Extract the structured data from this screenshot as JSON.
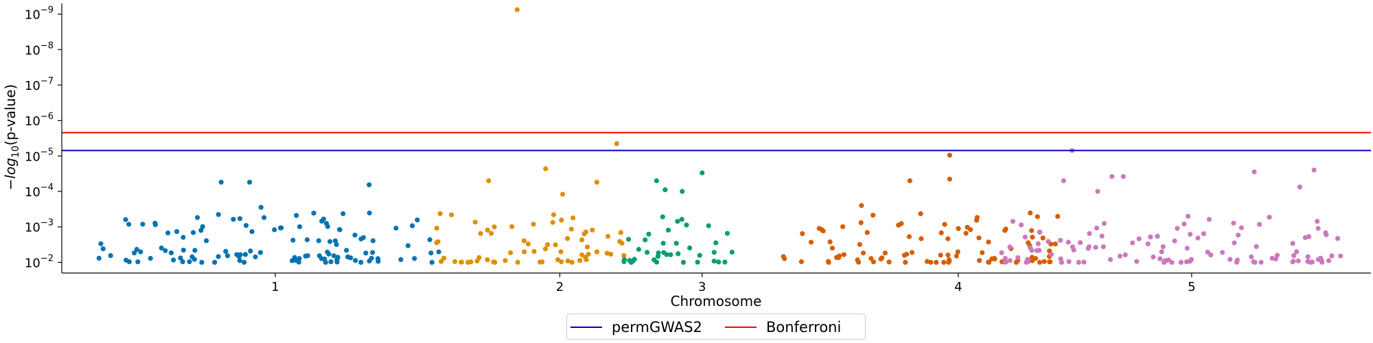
{
  "chart_data": {
    "type": "scatter",
    "title": "",
    "xlabel": "Chromosome",
    "ylabel": "-log10(p-value)",
    "y_scale": "log",
    "y_axis_inverted": true,
    "ylim": [
      0.02,
      5e-10
    ],
    "y_ticks": [
      1e-09,
      1e-08,
      1e-07,
      1e-06,
      1e-05,
      0.0001,
      0.001,
      0.01
    ],
    "y_tick_labels": [
      {
        "base": "10",
        "exp": "−9"
      },
      {
        "base": "10",
        "exp": "−8"
      },
      {
        "base": "10",
        "exp": "−7"
      },
      {
        "base": "10",
        "exp": "−6"
      },
      {
        "base": "10",
        "exp": "−5"
      },
      {
        "base": "10",
        "exp": "−4"
      },
      {
        "base": "10",
        "exp": "−3"
      },
      {
        "base": "10",
        "exp": "−2"
      }
    ],
    "x_ticks": [
      {
        "label": "1",
        "pos": 0.75
      },
      {
        "label": "2",
        "pos": 1.75
      },
      {
        "label": "3",
        "pos": 2.25
      },
      {
        "label": "4",
        "pos": 3.15
      },
      {
        "label": "5",
        "pos": 3.97
      }
    ],
    "xlim": [
      0,
      4.6
    ],
    "grid": false,
    "legend_placement": "bottom-center",
    "thresholds": [
      {
        "name": "permGWAS2",
        "value": 7e-06,
        "color": "#0000cc"
      },
      {
        "name": "Bonferroni",
        "value": 2.2e-06,
        "color": "#ff0000"
      }
    ],
    "series": [
      {
        "chromosome": "1",
        "color": "#0173b2",
        "x_range": [
          0.12,
          1.33
        ],
        "highlights": [
          [
            0.56,
            5.5e-05
          ],
          [
            0.66,
            5.5e-05
          ],
          [
            0.7,
            0.00028
          ],
          [
            1.08,
            6.5e-05
          ],
          [
            1.03,
            0.0017
          ],
          [
            1.06,
            0.002
          ],
          [
            0.92,
            0.0006
          ]
        ]
      },
      {
        "chromosome": "2",
        "color": "#de8f05",
        "x_range": [
          1.3,
          1.98
        ],
        "highlights": [
          [
            1.6,
            7.5e-10
          ],
          [
            1.95,
            4.5e-06
          ],
          [
            1.7,
            2.3e-05
          ],
          [
            1.5,
            5e-05
          ],
          [
            1.88,
            5.5e-05
          ],
          [
            1.76,
            0.00012
          ]
        ]
      },
      {
        "chromosome": "3",
        "color": "#029e73",
        "x_range": [
          1.97,
          2.37
        ],
        "highlights": [
          [
            2.25,
            3e-05
          ],
          [
            2.09,
            5e-05
          ],
          [
            2.18,
            0.0001
          ],
          [
            2.12,
            9e-05
          ]
        ]
      },
      {
        "chromosome": "4",
        "color": "#d55e00",
        "x_range": [
          2.53,
          3.51
        ],
        "highlights": [
          [
            3.12,
            9.5e-06
          ],
          [
            3.12,
            4.5e-05
          ],
          [
            2.98,
            5e-05
          ],
          [
            2.81,
            0.00025
          ]
        ]
      },
      {
        "chromosome": "5",
        "color": "#cc78bc",
        "x_range": [
          3.3,
          4.52
        ],
        "highlights": [
          [
            3.55,
            7e-06
          ],
          [
            4.4,
            2.5e-05
          ],
          [
            4.19,
            2.8e-05
          ],
          [
            3.73,
            3.8e-05
          ],
          [
            3.69,
            3.8e-05
          ],
          [
            3.52,
            5e-05
          ],
          [
            4.35,
            7.5e-05
          ],
          [
            3.64,
            0.0001
          ]
        ]
      }
    ]
  },
  "legend": {
    "items": [
      {
        "label": "permGWAS2",
        "color": "#0000cc"
      },
      {
        "label": "Bonferroni",
        "color": "#ff0000"
      }
    ]
  }
}
